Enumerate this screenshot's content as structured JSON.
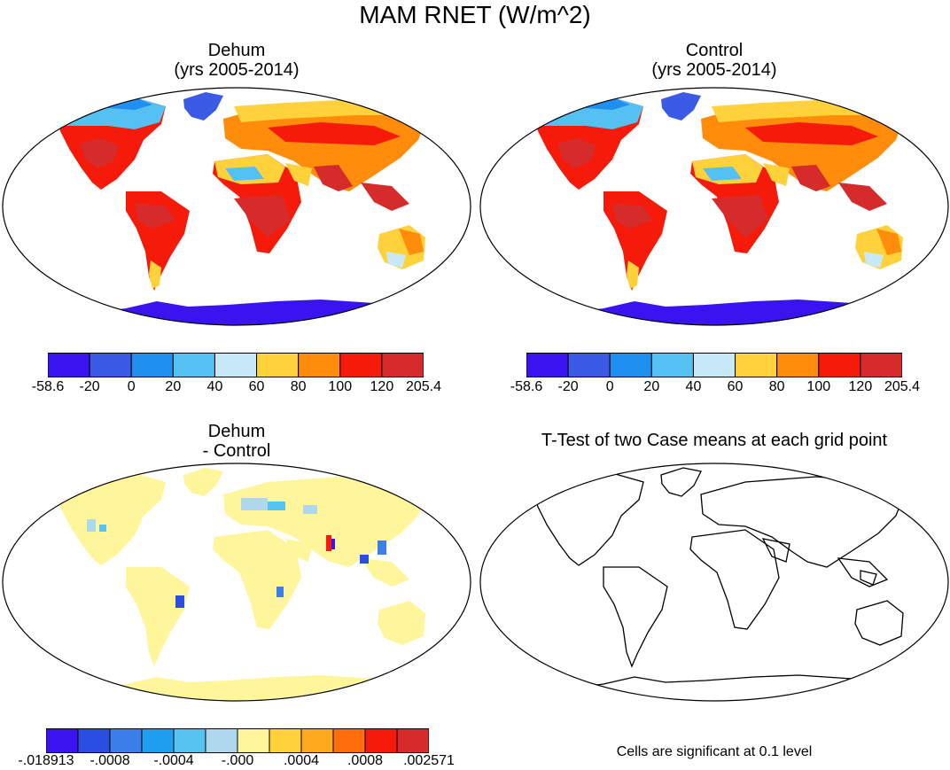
{
  "figure": {
    "main_title": "MAM RNET (W/m^2)"
  },
  "panels": [
    {
      "id": "dehum",
      "title_line1": "Dehum",
      "title_line2": "(yrs 2005-2014)",
      "colorbar": {
        "colors": [
          "#3a14f0",
          "#3b5be6",
          "#1f8ff0",
          "#55c1f2",
          "#c8eaf8",
          "#ffd23c",
          "#ff8c0a",
          "#f51a0a",
          "#d52b2b"
        ],
        "labels": [
          "-58.6",
          "-20",
          "0",
          "20",
          "40",
          "60",
          "80",
          "100",
          "120",
          "205.4"
        ]
      }
    },
    {
      "id": "control",
      "title_line1": "Control",
      "title_line2": "(yrs 2005-2014)",
      "colorbar": {
        "colors": [
          "#3a14f0",
          "#3b5be6",
          "#1f8ff0",
          "#55c1f2",
          "#c8eaf8",
          "#ffd23c",
          "#ff8c0a",
          "#f51a0a",
          "#d52b2b"
        ],
        "labels": [
          "-58.6",
          "-20",
          "0",
          "20",
          "40",
          "60",
          "80",
          "100",
          "120",
          "205.4"
        ]
      }
    },
    {
      "id": "difference",
      "title_line1": "Dehum",
      "title_line2": "- Control",
      "colorbar": {
        "colors": [
          "#3a14f0",
          "#2a4fe0",
          "#3d7fea",
          "#1f9ff0",
          "#56c3f0",
          "#aed8ee",
          "#fff59a",
          "#ffd23c",
          "#ffaa1e",
          "#ff6e0a",
          "#f51a0a",
          "#d52b2b"
        ],
        "labels": [
          "-.018913",
          "-.0008",
          "-.0004",
          "-.000",
          ".0004",
          ".0008",
          ".002571"
        ]
      }
    },
    {
      "id": "ttest",
      "title_line1": "T-Test of two Case means at each grid point",
      "footnote": "Cells are significant at 0.1 level"
    }
  ]
}
